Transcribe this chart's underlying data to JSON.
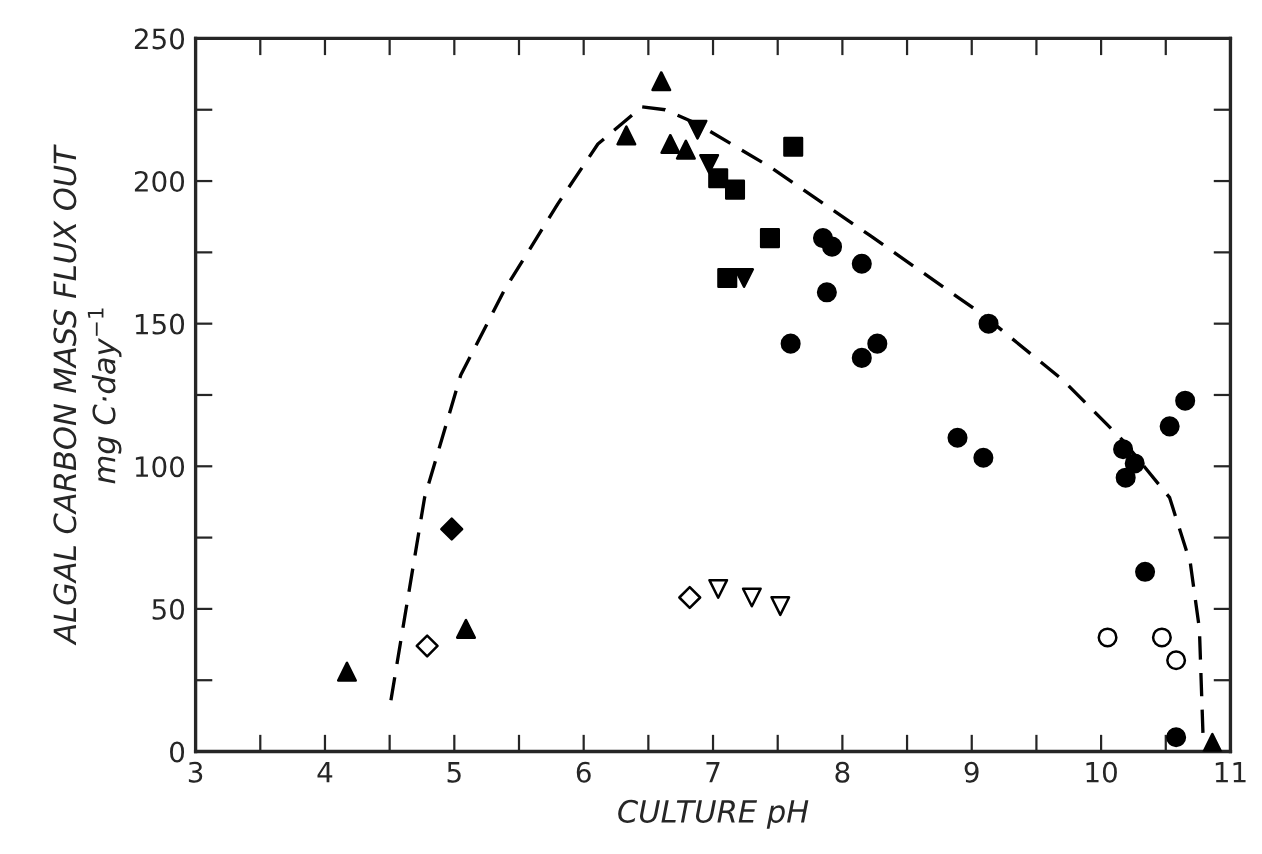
{
  "chart_data": {
    "type": "scatter",
    "xlabel": "CULTURE pH",
    "ylabel": "ALGAL CARBON MASS FLUX OUT\nmg C·day$^{−1}$",
    "xlim": [
      3,
      11
    ],
    "ylim": [
      0,
      250
    ],
    "xticks": [
      3,
      {
        "value": 3.5,
        "label": null
      },
      4,
      {
        "value": 4.5,
        "label": null
      },
      5,
      {
        "value": 5.5,
        "label": null
      },
      6,
      {
        "value": 6.5,
        "label": null
      },
      7,
      {
        "value": 7.5,
        "label": null
      },
      8,
      {
        "value": 8.5,
        "label": null
      },
      9,
      {
        "value": 9.5,
        "label": null
      },
      10,
      {
        "value": 10.5,
        "label": null
      },
      11
    ],
    "yticks": [
      0,
      {
        "value": 25,
        "label": null
      },
      50,
      {
        "value": 75,
        "label": null
      },
      100,
      {
        "value": 125,
        "label": null
      },
      150,
      {
        "value": 175,
        "label": null
      },
      200,
      {
        "value": 225,
        "label": null
      },
      250
    ],
    "grid": false,
    "legend": false,
    "series": [
      {
        "marker": "triangle",
        "color": "#000000",
        "x": [
          4.17,
          5.09,
          6.33,
          6.6,
          6.67,
          6.79,
          10.86
        ],
        "values": [
          28,
          43,
          216,
          235,
          213,
          211,
          3
        ]
      },
      {
        "marker": "diamond",
        "color": "#000000",
        "x": [
          4.98
        ],
        "values": [
          78
        ]
      },
      {
        "marker": "diamond",
        "color": "#ffffff",
        "x": [
          4.79,
          6.82
        ],
        "values": [
          37,
          54
        ]
      },
      {
        "marker": "triangle_down",
        "color": "#ffffff",
        "x": [
          7.04,
          7.3,
          7.52
        ],
        "values": [
          57,
          54,
          51
        ]
      },
      {
        "marker": "triangle_down",
        "color": "#000000",
        "x": [
          6.88,
          6.97,
          7.24
        ],
        "values": [
          218,
          206,
          166
        ]
      },
      {
        "marker": "square",
        "color": "#000000",
        "x": [
          7.04,
          7.17,
          7.62,
          7.44,
          7.11
        ],
        "values": [
          201,
          197,
          212,
          180,
          166
        ]
      },
      {
        "marker": "circle",
        "color": "#000000",
        "x": [
          7.85,
          7.92,
          8.15,
          7.88,
          7.6,
          8.15,
          8.27,
          9.13,
          8.89,
          9.09,
          10.17,
          10.26,
          10.19,
          10.53,
          10.65,
          10.34,
          10.58
        ],
        "values": [
          180,
          177,
          171,
          161,
          143,
          138,
          143,
          150,
          110,
          103,
          106,
          101,
          96,
          114,
          123,
          63,
          5
        ]
      },
      {
        "marker": "circle",
        "color": "#ffffff",
        "x": [
          10.05,
          10.47,
          10.58
        ],
        "values": [
          40,
          40,
          32
        ]
      },
      {
        "type": "line",
        "line_style": "dashed",
        "marker": "none",
        "color": "#000000",
        "x": [
          4.51,
          4.77,
          5.05,
          5.39,
          5.8,
          6.11,
          6.45,
          6.63,
          6.88,
          7.44,
          8.21,
          9.09,
          9.71,
          10.17,
          10.53,
          10.69,
          10.76,
          10.79
        ],
        "values": [
          18,
          89,
          132,
          162,
          192,
          213,
          226,
          225,
          220,
          205,
          181,
          153,
          130,
          109,
          89,
          66,
          43,
          3
        ]
      }
    ]
  }
}
